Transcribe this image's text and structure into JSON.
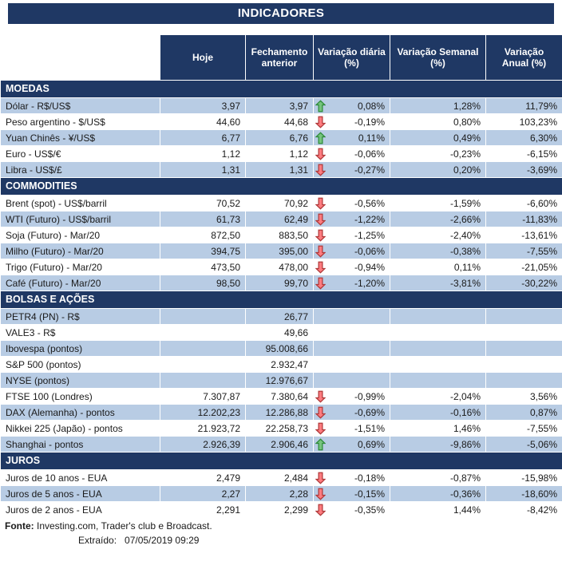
{
  "title": "INDICADORES",
  "columns": [
    "Hoje",
    "Fechamento\nanterior",
    "Variação diária\n(%)",
    "Variação Semanal\n(%)",
    "Variação\nAnual (%)"
  ],
  "sections": [
    {
      "name": "MOEDAS",
      "rows": [
        {
          "label": "Dólar - R$/US$",
          "hoje": "3,97",
          "fechamento": "3,97",
          "arrow": "up",
          "var_diaria": "0,08%",
          "var_semanal": "1,28%",
          "var_anual": "11,79%",
          "shaded": true
        },
        {
          "label": "Peso argentino - $/US$",
          "hoje": "44,60",
          "fechamento": "44,68",
          "arrow": "down",
          "var_diaria": "-0,19%",
          "var_semanal": "0,80%",
          "var_anual": "103,23%",
          "shaded": false
        },
        {
          "label": "Yuan Chinês - ¥/US$",
          "hoje": "6,77",
          "fechamento": "6,76",
          "arrow": "up",
          "var_diaria": "0,11%",
          "var_semanal": "0,49%",
          "var_anual": "6,30%",
          "shaded": true
        },
        {
          "label": "Euro - US$/€",
          "hoje": "1,12",
          "fechamento": "1,12",
          "arrow": "down",
          "var_diaria": "-0,06%",
          "var_semanal": "-0,23%",
          "var_anual": "-6,15%",
          "shaded": false
        },
        {
          "label": "Libra - US$/£",
          "hoje": "1,31",
          "fechamento": "1,31",
          "arrow": "down",
          "var_diaria": "-0,27%",
          "var_semanal": "0,20%",
          "var_anual": "-3,69%",
          "shaded": true
        }
      ]
    },
    {
      "name": "COMMODITIES",
      "rows": [
        {
          "label": "Brent (spot) - US$/barril",
          "hoje": "70,52",
          "fechamento": "70,92",
          "arrow": "down",
          "var_diaria": "-0,56%",
          "var_semanal": "-1,59%",
          "var_anual": "-6,60%",
          "shaded": false
        },
        {
          "label": "WTI (Futuro) - US$/barril",
          "hoje": "61,73",
          "fechamento": "62,49",
          "arrow": "down",
          "var_diaria": "-1,22%",
          "var_semanal": "-2,66%",
          "var_anual": "-11,83%",
          "shaded": true
        },
        {
          "label": "Soja (Futuro) - Mar/20",
          "hoje": "872,50",
          "fechamento": "883,50",
          "arrow": "down",
          "var_diaria": "-1,25%",
          "var_semanal": "-2,40%",
          "var_anual": "-13,61%",
          "shaded": false
        },
        {
          "label": "Milho (Futuro) - Mar/20",
          "hoje": "394,75",
          "fechamento": "395,00",
          "arrow": "down",
          "var_diaria": "-0,06%",
          "var_semanal": "-0,38%",
          "var_anual": "-7,55%",
          "shaded": true
        },
        {
          "label": "Trigo (Futuro) - Mar/20",
          "hoje": "473,50",
          "fechamento": "478,00",
          "arrow": "down",
          "var_diaria": "-0,94%",
          "var_semanal": "0,11%",
          "var_anual": "-21,05%",
          "shaded": false
        },
        {
          "label": "Café (Futuro) - Mar/20",
          "hoje": "98,50",
          "fechamento": "99,70",
          "arrow": "down",
          "var_diaria": "-1,20%",
          "var_semanal": "-3,81%",
          "var_anual": "-30,22%",
          "shaded": true
        }
      ]
    },
    {
      "name": "BOLSAS E AÇÕES",
      "rows": [
        {
          "label": "PETR4 (PN) - R$",
          "hoje": "",
          "fechamento": "26,77",
          "arrow": null,
          "var_diaria": "",
          "var_semanal": "",
          "var_anual": "",
          "shaded": true
        },
        {
          "label": "VALE3 - R$",
          "hoje": "",
          "fechamento": "49,66",
          "arrow": null,
          "var_diaria": "",
          "var_semanal": "",
          "var_anual": "",
          "shaded": false
        },
        {
          "label": "Ibovespa (pontos)",
          "hoje": "",
          "fechamento": "95.008,66",
          "arrow": null,
          "var_diaria": "",
          "var_semanal": "",
          "var_anual": "",
          "shaded": true
        },
        {
          "label": "S&P 500 (pontos)",
          "hoje": "",
          "fechamento": "2.932,47",
          "arrow": null,
          "var_diaria": "",
          "var_semanal": "",
          "var_anual": "",
          "shaded": false
        },
        {
          "label": "NYSE (pontos)",
          "hoje": "",
          "fechamento": "12.976,67",
          "arrow": null,
          "var_diaria": "",
          "var_semanal": "",
          "var_anual": "",
          "shaded": true
        },
        {
          "label": "FTSE 100 (Londres)",
          "hoje": "7.307,87",
          "fechamento": "7.380,64",
          "arrow": "down",
          "var_diaria": "-0,99%",
          "var_semanal": "-2,04%",
          "var_anual": "3,56%",
          "shaded": false
        },
        {
          "label": "DAX (Alemanha) - pontos",
          "hoje": "12.202,23",
          "fechamento": "12.286,88",
          "arrow": "down",
          "var_diaria": "-0,69%",
          "var_semanal": "-0,16%",
          "var_anual": "0,87%",
          "shaded": true
        },
        {
          "label": "Nikkei 225 (Japão) - pontos",
          "hoje": "21.923,72",
          "fechamento": "22.258,73",
          "arrow": "down",
          "var_diaria": "-1,51%",
          "var_semanal": "1,46%",
          "var_anual": "-7,55%",
          "shaded": false
        },
        {
          "label": "Shanghai - pontos",
          "hoje": "2.926,39",
          "fechamento": "2.906,46",
          "arrow": "up",
          "var_diaria": "0,69%",
          "var_semanal": "-9,86%",
          "var_anual": "-5,06%",
          "shaded": true
        }
      ]
    },
    {
      "name": "JUROS",
      "rows": [
        {
          "label": "Juros de 10 anos - EUA",
          "hoje": "2,479",
          "fechamento": "2,484",
          "arrow": "down",
          "var_diaria": "-0,18%",
          "var_semanal": "-0,87%",
          "var_anual": "-15,98%",
          "shaded": false
        },
        {
          "label": "Juros de 5 anos - EUA",
          "hoje": "2,27",
          "fechamento": "2,28",
          "arrow": "down",
          "var_diaria": "-0,15%",
          "var_semanal": "-0,36%",
          "var_anual": "-18,60%",
          "shaded": true
        },
        {
          "label": "Juros de 2 anos - EUA",
          "hoje": "2,291",
          "fechamento": "2,299",
          "arrow": "down",
          "var_diaria": "-0,35%",
          "var_semanal": "1,44%",
          "var_anual": "-8,42%",
          "shaded": false
        }
      ]
    }
  ],
  "footer": {
    "fonte_label": "Fonte:",
    "fonte_text": " Investing.com, Trader's club e Broadcast.",
    "extraido_label": "Extraído:",
    "extraido_value": "07/05/2019 09:29"
  },
  "colors": {
    "navy": "#1F3864",
    "band_blue": "#B8CCE4",
    "text": "#1A1A1A",
    "arrow_up_fill": "#76C47E",
    "arrow_up_stroke": "#2E8B3A",
    "arrow_down_fill": "#FF7C80",
    "arrow_down_stroke": "#B03A3A"
  }
}
